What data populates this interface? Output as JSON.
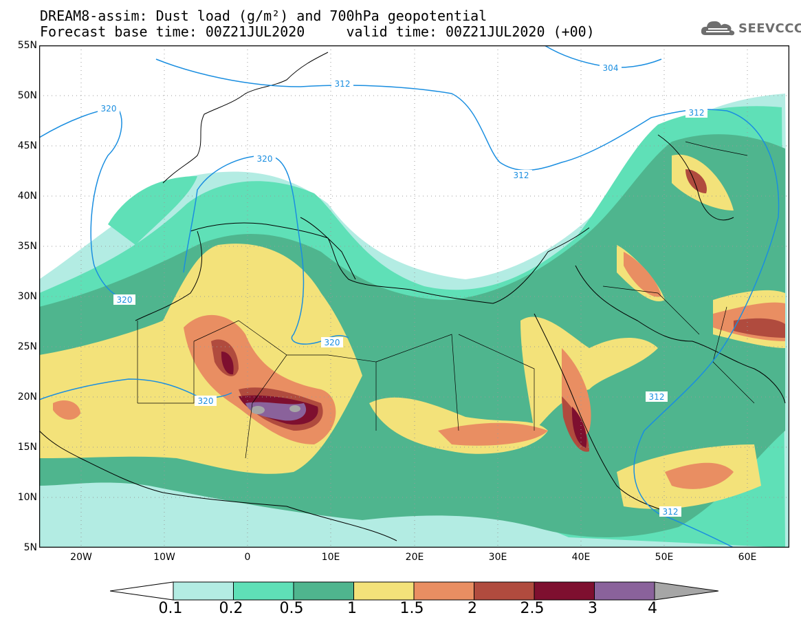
{
  "title": {
    "line1": "DREAM8-assim: Dust load (g/m²) and 700hPa geopotential",
    "line2": "Forecast base time: 00Z21JUL2020     valid time: 00Z21JUL2020 (+00)"
  },
  "logo": {
    "text": "SEEVCCC",
    "icon": "cloud-icon"
  },
  "axes": {
    "lat_labels": [
      "55N",
      "50N",
      "45N",
      "40N",
      "35N",
      "30N",
      "25N",
      "20N",
      "15N",
      "10N",
      "5N"
    ],
    "lon_labels": [
      "20W",
      "10W",
      "0",
      "10E",
      "20E",
      "30E",
      "40E",
      "50E",
      "60E"
    ]
  },
  "contours": [
    {
      "value": "304"
    },
    {
      "value": "312"
    },
    {
      "value": "320"
    }
  ],
  "colorbar": {
    "labels": [
      "0.1",
      "0.2",
      "0.5",
      "1",
      "1.5",
      "2",
      "2.5",
      "3",
      "4"
    ],
    "colors": [
      "#b3ece3",
      "#5fe0b7",
      "#4fb58e",
      "#f3e27a",
      "#e98e62",
      "#b04b3e",
      "#7e0f2f",
      "#8a629b",
      "#a6a6a6"
    ]
  }
}
